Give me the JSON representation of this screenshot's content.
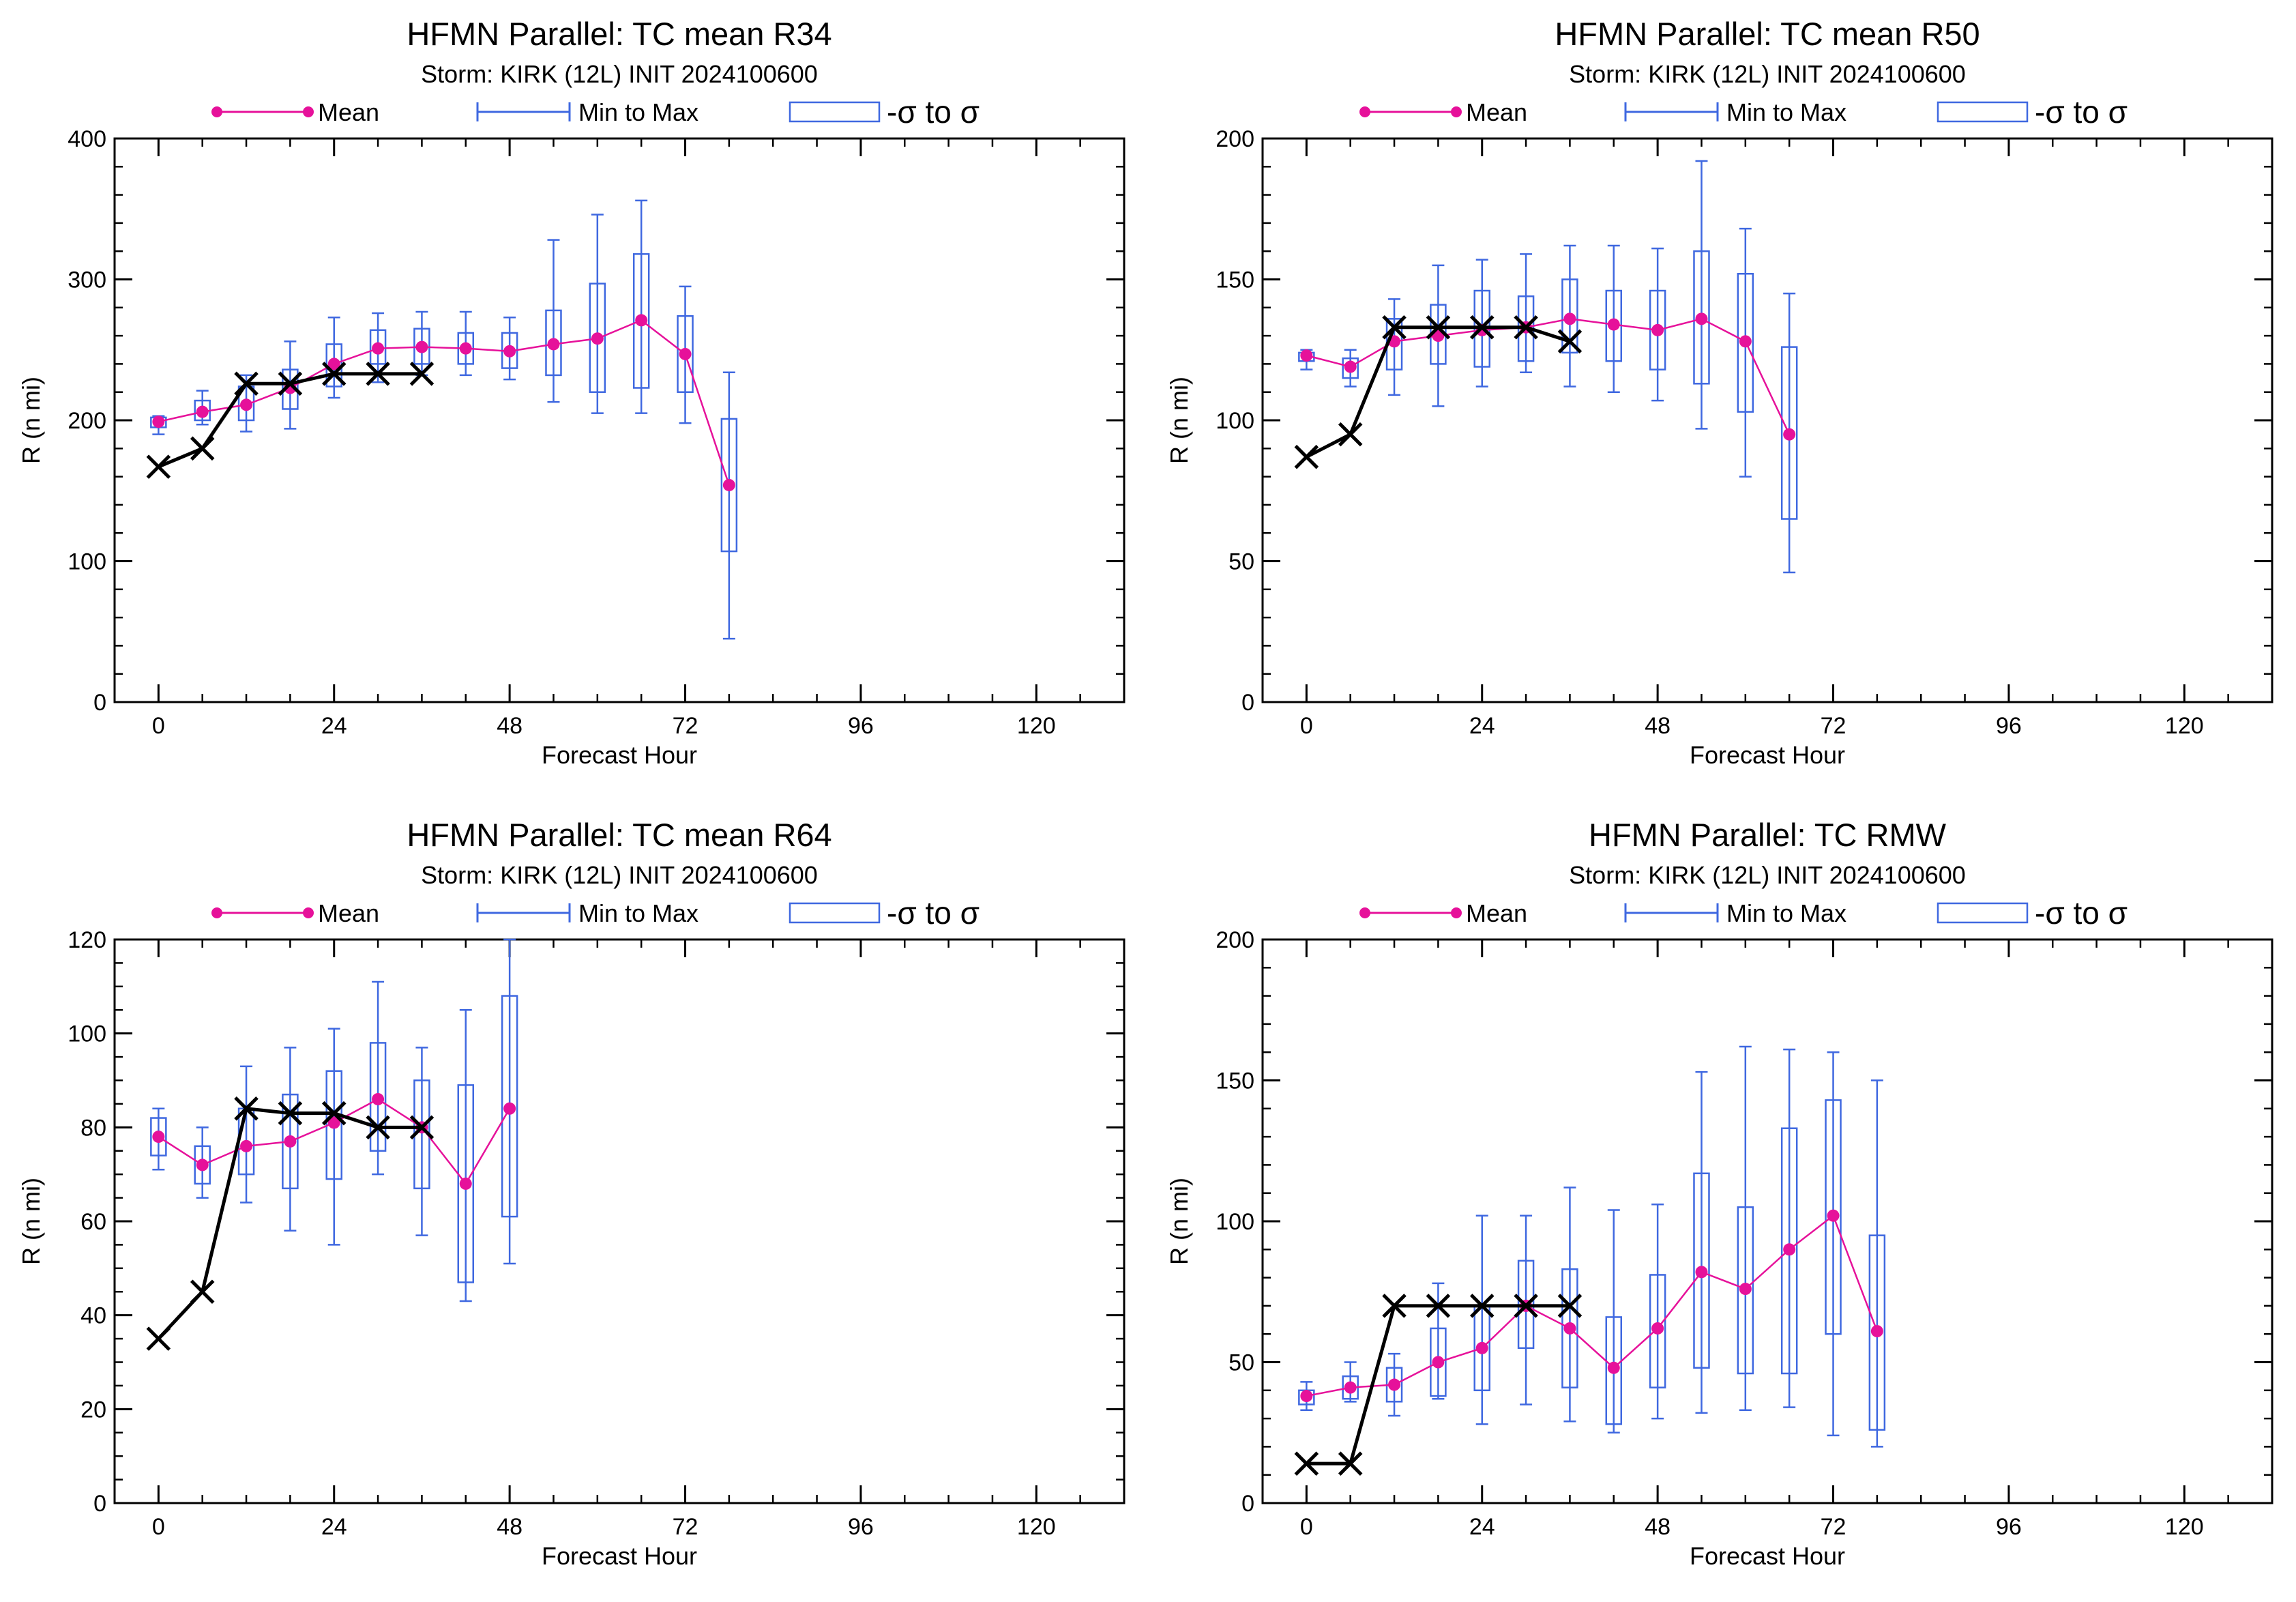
{
  "colors": {
    "mean": "#e6119a",
    "range": "#3f68e0",
    "sigma_box": "#3f68e0",
    "best_track": "#000000",
    "axes": "#000000"
  },
  "legend": {
    "mean_label": "Mean",
    "range_label": "Min to Max",
    "sigma_label": "-σ to σ"
  },
  "chart_data": [
    {
      "type": "box-whisker line",
      "title": "HFMN Parallel: TC mean R34",
      "subtitle": "Storm: KIRK (12L) INIT 2024100600",
      "xlabel": "Forecast Hour",
      "ylabel": "R (n mi)",
      "xlim": [
        -6,
        132
      ],
      "ylim": [
        0,
        400
      ],
      "xticks": [
        0,
        24,
        48,
        72,
        96,
        120
      ],
      "yticks": [
        0,
        100,
        200,
        300,
        400
      ],
      "x_minor_step": 6,
      "y_minor_step": 20,
      "series": [
        {
          "name": "Mean",
          "x": [
            0,
            6,
            12,
            18,
            24,
            30,
            36,
            42,
            48,
            54,
            60,
            66,
            72,
            78
          ],
          "values": [
            199,
            206,
            211,
            223,
            240,
            251,
            252,
            251,
            249,
            254,
            258,
            271,
            247,
            154
          ]
        },
        {
          "name": "Min to Max",
          "x": [
            0,
            6,
            12,
            18,
            24,
            30,
            36,
            42,
            48,
            54,
            60,
            66,
            72,
            78
          ],
          "min": [
            190,
            197,
            192,
            194,
            216,
            227,
            232,
            232,
            229,
            213,
            205,
            205,
            198,
            45
          ],
          "max": [
            203,
            221,
            232,
            256,
            273,
            276,
            277,
            277,
            273,
            328,
            346,
            356,
            295,
            234
          ]
        },
        {
          "name": "-σ to σ",
          "x": [
            0,
            6,
            12,
            18,
            24,
            30,
            36,
            42,
            48,
            54,
            60,
            66,
            72,
            78
          ],
          "low": [
            195,
            200,
            200,
            208,
            224,
            240,
            240,
            240,
            237,
            232,
            220,
            223,
            220,
            107
          ],
          "high": [
            202,
            214,
            224,
            236,
            254,
            264,
            265,
            262,
            262,
            278,
            297,
            318,
            274,
            201
          ]
        },
        {
          "name": "",
          "x": [
            0,
            6,
            12,
            18,
            24,
            30,
            36
          ],
          "values": [
            167,
            180,
            226,
            226,
            233,
            233,
            233
          ]
        }
      ]
    },
    {
      "type": "box-whisker line",
      "title": "HFMN Parallel: TC mean R50",
      "subtitle": "Storm: KIRK (12L) INIT 2024100600",
      "xlabel": "Forecast Hour",
      "ylabel": "R (n mi)",
      "xlim": [
        -6,
        132
      ],
      "ylim": [
        0,
        200
      ],
      "xticks": [
        0,
        24,
        48,
        72,
        96,
        120
      ],
      "yticks": [
        0,
        50,
        100,
        150,
        200
      ],
      "x_minor_step": 6,
      "y_minor_step": 10,
      "series": [
        {
          "name": "Mean",
          "x": [
            0,
            6,
            12,
            18,
            24,
            30,
            36,
            42,
            48,
            54,
            60,
            66
          ],
          "values": [
            123,
            119,
            128,
            130,
            132,
            133,
            136,
            134,
            132,
            136,
            128,
            95
          ]
        },
        {
          "name": "Min to Max",
          "x": [
            0,
            6,
            12,
            18,
            24,
            30,
            36,
            42,
            48,
            54,
            60,
            66
          ],
          "min": [
            118,
            112,
            109,
            105,
            112,
            117,
            112,
            110,
            107,
            97,
            80,
            46
          ],
          "max": [
            125,
            125,
            143,
            155,
            157,
            159,
            162,
            162,
            161,
            192,
            168,
            145
          ]
        },
        {
          "name": "-σ to σ",
          "x": [
            0,
            6,
            12,
            18,
            24,
            30,
            36,
            42,
            48,
            54,
            60,
            66
          ],
          "low": [
            121,
            115,
            118,
            120,
            119,
            121,
            124,
            121,
            118,
            113,
            103,
            65
          ],
          "high": [
            124,
            122,
            136,
            141,
            146,
            144,
            150,
            146,
            146,
            160,
            152,
            126
          ]
        },
        {
          "name": "",
          "x": [
            0,
            6,
            12,
            18,
            24,
            30,
            36
          ],
          "values": [
            87,
            95,
            133,
            133,
            133,
            133,
            128
          ]
        }
      ]
    },
    {
      "type": "box-whisker line",
      "title": "HFMN Parallel: TC mean R64",
      "subtitle": "Storm: KIRK (12L) INIT 2024100600",
      "xlabel": "Forecast Hour",
      "ylabel": "R (n mi)",
      "xlim": [
        -6,
        132
      ],
      "ylim": [
        0,
        120
      ],
      "xticks": [
        0,
        24,
        48,
        72,
        96,
        120
      ],
      "yticks": [
        0,
        20,
        40,
        60,
        80,
        100,
        120
      ],
      "x_minor_step": 6,
      "y_minor_step": 5,
      "series": [
        {
          "name": "Mean",
          "x": [
            0,
            6,
            12,
            18,
            24,
            30,
            36,
            42,
            48
          ],
          "values": [
            78,
            72,
            76,
            77,
            81,
            86,
            80,
            68,
            84
          ]
        },
        {
          "name": "Min to Max",
          "x": [
            0,
            6,
            12,
            18,
            24,
            30,
            36,
            42,
            48
          ],
          "min": [
            71,
            65,
            64,
            58,
            55,
            70,
            57,
            43,
            51
          ],
          "max": [
            84,
            80,
            93,
            97,
            101,
            111,
            97,
            105,
            120
          ]
        },
        {
          "name": "-σ to σ",
          "x": [
            0,
            6,
            12,
            18,
            24,
            30,
            36,
            42,
            48
          ],
          "low": [
            74,
            68,
            70,
            67,
            69,
            75,
            67,
            47,
            61
          ],
          "high": [
            82,
            76,
            84,
            87,
            92,
            98,
            90,
            89,
            108
          ]
        },
        {
          "name": "",
          "x": [
            0,
            6,
            12,
            18,
            24,
            30,
            36
          ],
          "values": [
            35,
            45,
            84,
            83,
            83,
            80,
            80
          ]
        }
      ]
    },
    {
      "type": "box-whisker line",
      "title": "HFMN Parallel: TC RMW",
      "subtitle": "Storm: KIRK (12L) INIT 2024100600",
      "xlabel": "Forecast Hour",
      "ylabel": "R (n mi)",
      "xlim": [
        -6,
        132
      ],
      "ylim": [
        0,
        200
      ],
      "xticks": [
        0,
        24,
        48,
        72,
        96,
        120
      ],
      "yticks": [
        0,
        50,
        100,
        150,
        200
      ],
      "x_minor_step": 6,
      "y_minor_step": 10,
      "series": [
        {
          "name": "Mean",
          "x": [
            0,
            6,
            12,
            18,
            24,
            30,
            36,
            42,
            48,
            54,
            60,
            66,
            72,
            78
          ],
          "values": [
            38,
            41,
            42,
            50,
            55,
            70,
            62,
            48,
            62,
            82,
            76,
            90,
            102,
            61
          ]
        },
        {
          "name": "Min to Max",
          "x": [
            0,
            6,
            12,
            18,
            24,
            30,
            36,
            42,
            48,
            54,
            60,
            66,
            72,
            78
          ],
          "min": [
            33,
            36,
            31,
            37,
            28,
            35,
            29,
            25,
            30,
            32,
            33,
            34,
            24,
            20
          ],
          "max": [
            43,
            50,
            53,
            78,
            102,
            102,
            112,
            104,
            106,
            153,
            162,
            161,
            160,
            150
          ]
        },
        {
          "name": "-σ to σ",
          "x": [
            0,
            6,
            12,
            18,
            24,
            30,
            36,
            42,
            48,
            54,
            60,
            66,
            72,
            78
          ],
          "low": [
            35,
            37,
            36,
            38,
            40,
            55,
            41,
            28,
            41,
            48,
            46,
            46,
            60,
            26
          ],
          "high": [
            40,
            45,
            48,
            62,
            70,
            86,
            83,
            66,
            81,
            117,
            105,
            133,
            143,
            95
          ]
        },
        {
          "name": "",
          "x": [
            0,
            6,
            12,
            18,
            24,
            30,
            36
          ],
          "values": [
            14,
            14,
            70,
            70,
            70,
            70,
            70
          ]
        }
      ]
    }
  ]
}
